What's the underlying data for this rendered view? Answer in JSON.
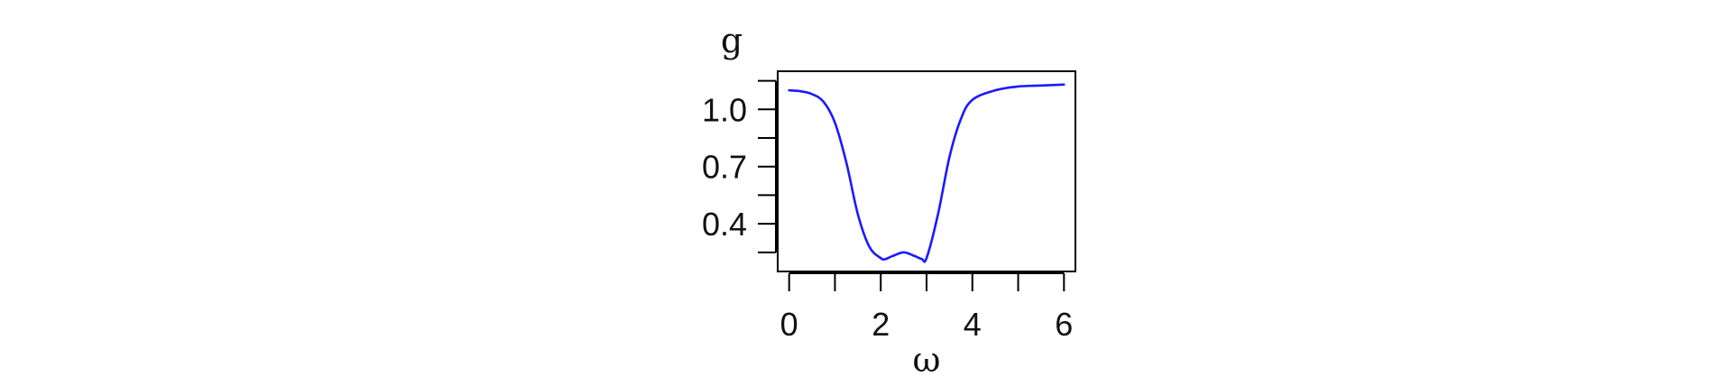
{
  "chart_data": {
    "type": "line",
    "title": "",
    "xlabel": "ω",
    "ylabel": "g",
    "xlim": [
      -0.25,
      6.25
    ],
    "ylim": [
      0.15,
      1.2
    ],
    "grid": false,
    "legend": "none",
    "x_ticks": [
      0,
      1,
      2,
      3,
      4,
      5,
      6
    ],
    "x_tick_labels": [
      {
        "value": 0,
        "label": "0"
      },
      {
        "value": 2,
        "label": "2"
      },
      {
        "value": 4,
        "label": "4"
      },
      {
        "value": 6,
        "label": "6"
      }
    ],
    "y_ticks": [
      0.25,
      0.4,
      0.55,
      0.7,
      0.85,
      1.0,
      1.15
    ],
    "y_tick_labels": [
      {
        "value": 0.4,
        "label": "0.4"
      },
      {
        "value": 0.7,
        "label": "0.7"
      },
      {
        "value": 1.0,
        "label": "1.0"
      }
    ],
    "series": [
      {
        "color": "#1a1aff",
        "x": [
          0.0,
          0.25,
          0.5,
          0.75,
          1.0,
          1.25,
          1.5,
          1.75,
          2.0,
          2.1,
          2.25,
          2.5,
          2.75,
          2.9,
          3.0,
          3.25,
          3.5,
          3.75,
          4.0,
          4.5,
          5.0,
          5.5,
          6.0
        ],
        "y": [
          1.1,
          1.095,
          1.08,
          1.04,
          0.93,
          0.72,
          0.45,
          0.28,
          0.22,
          0.215,
          0.23,
          0.25,
          0.23,
          0.215,
          0.22,
          0.45,
          0.75,
          0.95,
          1.05,
          1.1,
          1.12,
          1.125,
          1.13
        ]
      }
    ]
  }
}
